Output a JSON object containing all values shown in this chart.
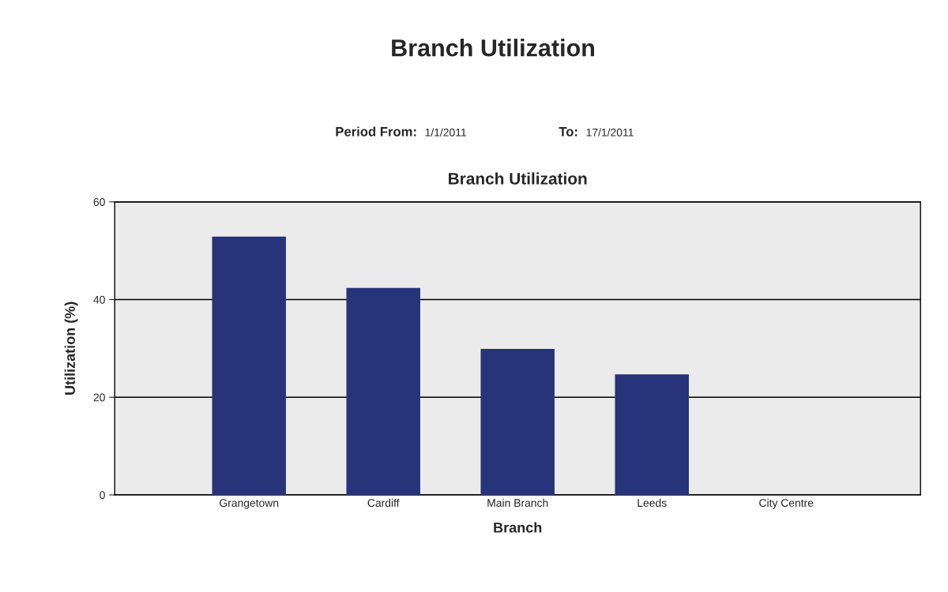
{
  "chart_data": {
    "type": "bar",
    "title": "Branch Utilization",
    "subtitle": "Branch Utilization",
    "annotations": [
      "Period From:",
      "1/1/2011",
      "To:",
      "17/1/2011"
    ],
    "xlabel": "Branch",
    "ylabel": "Utilization (%)",
    "categories": [
      "Grangetown",
      "Cardiff",
      "Main Branch",
      "Leeds",
      "City Centre"
    ],
    "values": [
      52.9,
      42.4,
      29.9,
      24.7,
      0
    ],
    "color": "#27347a",
    "ylim": [
      0,
      60
    ],
    "yticks": [
      0,
      20,
      40,
      60
    ],
    "grid": "y",
    "legend": false
  }
}
